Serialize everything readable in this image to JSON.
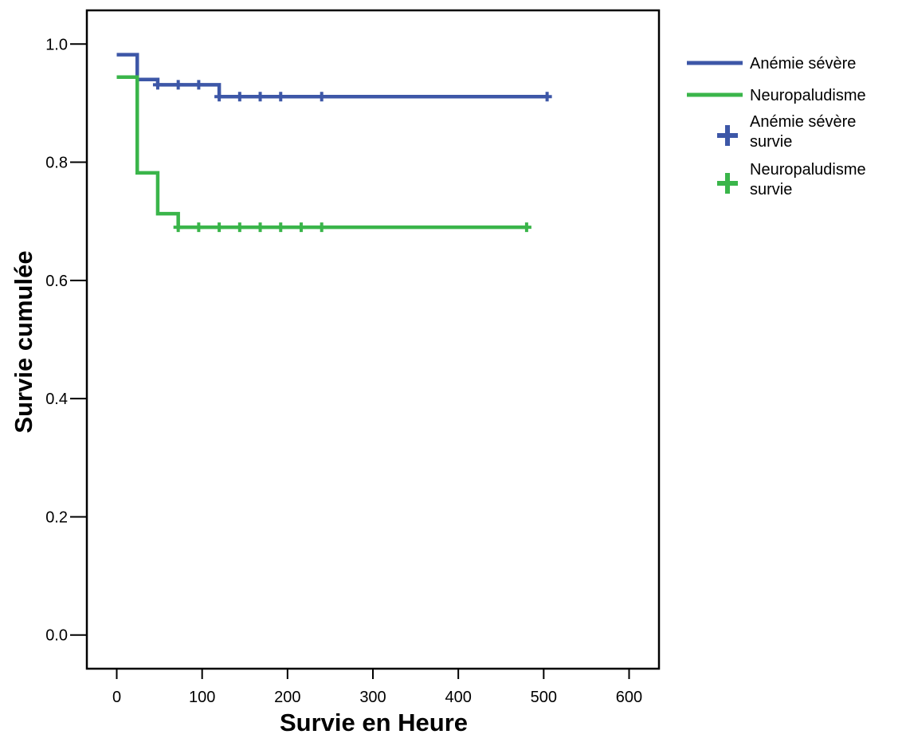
{
  "chart_data": {
    "type": "line",
    "subtype": "kaplan-meier-step",
    "xlabel": "Survie en Heure",
    "ylabel": "Survie cumulée",
    "xlim": [
      -35,
      635
    ],
    "ylim": [
      -0.057,
      1.057
    ],
    "x_ticks": [
      0,
      100,
      200,
      300,
      400,
      500,
      600
    ],
    "y_ticks": [
      0.0,
      0.2,
      0.4,
      0.6,
      0.8,
      1.0
    ],
    "x_tick_labels": [
      "0",
      "100",
      "200",
      "300",
      "400",
      "500",
      "600"
    ],
    "y_tick_labels": [
      "0.0",
      "0.2",
      "0.4",
      "0.6",
      "0.8",
      "1.0"
    ],
    "grid": false,
    "legend_position": "right",
    "series": [
      {
        "name": "Anémie sévère",
        "color": "#3d57a7",
        "steps": [
          [
            0,
            0.982
          ],
          [
            24,
            0.94
          ],
          [
            48,
            0.931
          ],
          [
            120,
            0.911
          ],
          [
            504,
            0.911
          ]
        ],
        "censored": [
          [
            48,
            0.931
          ],
          [
            72,
            0.931
          ],
          [
            96,
            0.931
          ],
          [
            120,
            0.911
          ],
          [
            144,
            0.911
          ],
          [
            168,
            0.911
          ],
          [
            192,
            0.911
          ],
          [
            240,
            0.911
          ],
          [
            504,
            0.911
          ]
        ]
      },
      {
        "name": "Neuropaludisme",
        "color": "#3ab54a",
        "steps": [
          [
            0,
            0.944
          ],
          [
            24,
            0.782
          ],
          [
            48,
            0.713
          ],
          [
            72,
            0.69
          ],
          [
            480,
            0.69
          ]
        ],
        "censored": [
          [
            72,
            0.69
          ],
          [
            96,
            0.69
          ],
          [
            120,
            0.69
          ],
          [
            144,
            0.69
          ],
          [
            168,
            0.69
          ],
          [
            192,
            0.69
          ],
          [
            216,
            0.69
          ],
          [
            240,
            0.69
          ],
          [
            480,
            0.69
          ]
        ]
      }
    ],
    "legend": [
      {
        "kind": "line",
        "color": "#3d57a7",
        "lines": [
          "Anémie sévère"
        ]
      },
      {
        "kind": "line",
        "color": "#3ab54a",
        "lines": [
          "Neuropaludisme"
        ]
      },
      {
        "kind": "plus",
        "color": "#3d57a7",
        "lines": [
          "Anémie sévère",
          "survie"
        ]
      },
      {
        "kind": "plus",
        "color": "#3ab54a",
        "lines": [
          "Neuropaludisme",
          "survie"
        ]
      }
    ]
  }
}
